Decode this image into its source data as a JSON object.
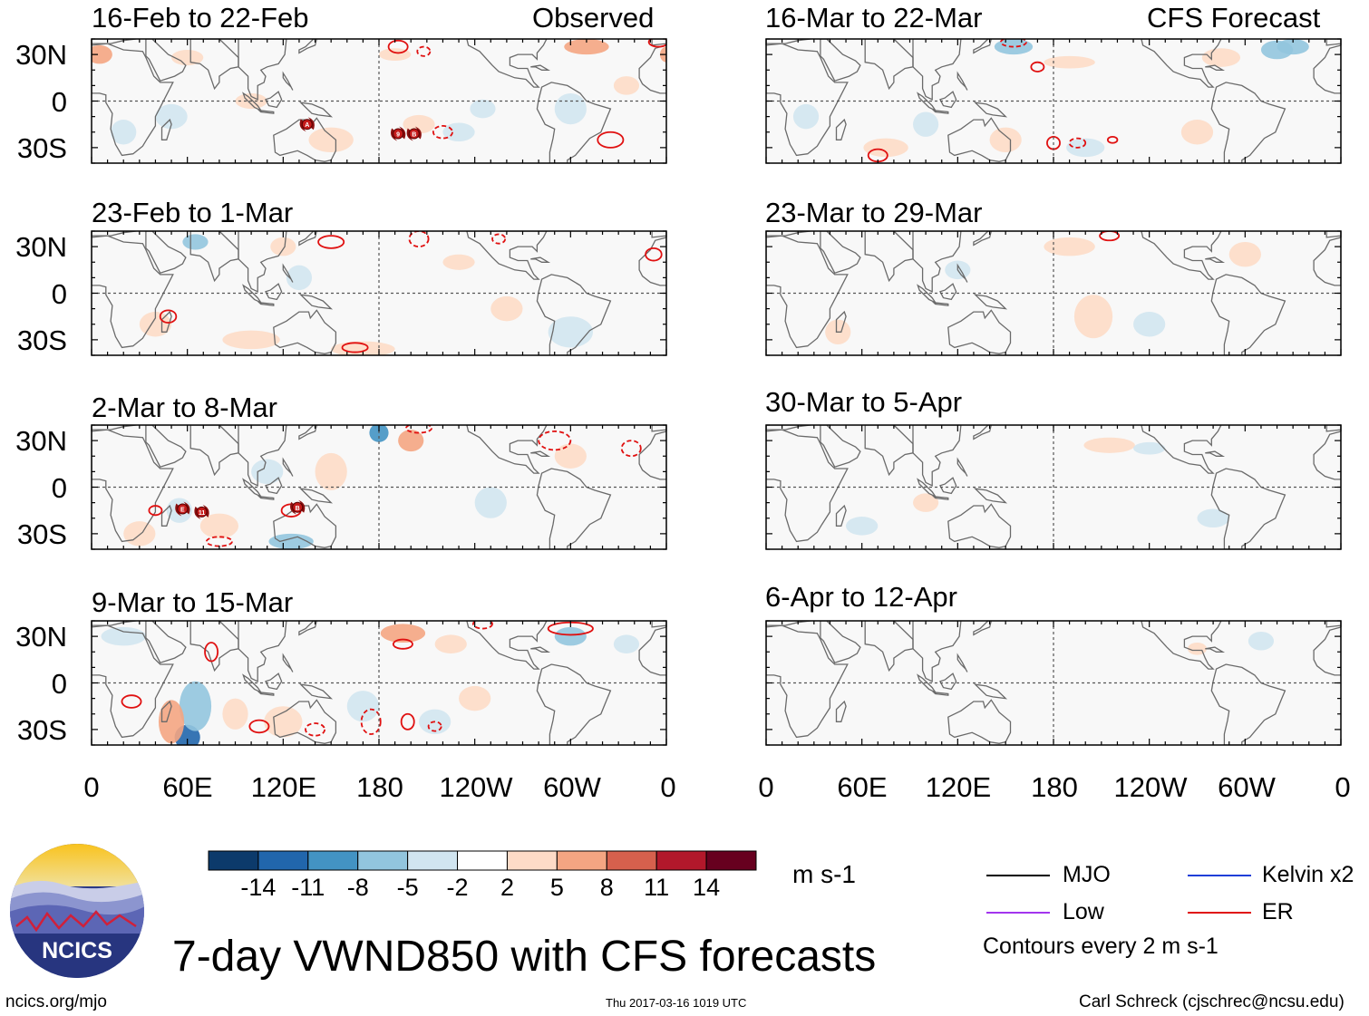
{
  "labels": {
    "observed": "Observed",
    "forecast": "CFS Forecast"
  },
  "panels": [
    {
      "id": "obs1",
      "period": "16-Feb to 22-Feb",
      "column": "left",
      "row": 0,
      "header": "Observed"
    },
    {
      "id": "obs2",
      "period": "23-Feb to 1-Mar",
      "column": "left",
      "row": 1
    },
    {
      "id": "obs3",
      "period": "2-Mar to 8-Mar",
      "column": "left",
      "row": 2
    },
    {
      "id": "obs4",
      "period": "9-Mar to 15-Mar",
      "column": "left",
      "row": 3
    },
    {
      "id": "fc1",
      "period": "16-Mar to 22-Mar",
      "column": "right",
      "row": 0,
      "header": "CFS Forecast"
    },
    {
      "id": "fc2",
      "period": "23-Mar to 29-Mar",
      "column": "right",
      "row": 1
    },
    {
      "id": "fc3",
      "period": "30-Mar to 5-Apr",
      "column": "right",
      "row": 2
    },
    {
      "id": "fc4",
      "period": "6-Apr to 12-Apr",
      "column": "right",
      "row": 3
    }
  ],
  "axes": {
    "y_ticks": [
      "30N",
      "0",
      "30S"
    ],
    "x_ticks": [
      "0",
      "60E",
      "120E",
      "180",
      "120W",
      "60W",
      "0"
    ],
    "lat_range": [
      -40,
      40
    ],
    "lon_range": [
      0,
      360
    ]
  },
  "colorbar": {
    "labels": [
      "-14",
      "-11",
      "-8",
      "-5",
      "-2",
      "2",
      "5",
      "8",
      "11",
      "14"
    ],
    "colors": [
      "#0c3a6b",
      "#2166ac",
      "#4393c3",
      "#92c5de",
      "#d1e5f0",
      "#ffffff",
      "#fddbc7",
      "#f4a582",
      "#d6604d",
      "#b2182b",
      "#67001f"
    ],
    "units": "m s-1"
  },
  "legend": {
    "items": [
      {
        "label": "MJO",
        "color": "#000000"
      },
      {
        "label": "Kelvin x2",
        "color": "#1f3fd8"
      },
      {
        "label": "Low",
        "color": "#a335ee"
      },
      {
        "label": "ER",
        "color": "#e01010"
      }
    ],
    "note": "Contours every 2 m s-1"
  },
  "title": "7-day VWND850 with CFS forecasts",
  "footer": {
    "left": "ncics.org/mjo",
    "center": "Thu 2017-03-16 1019 UTC",
    "right": "Carl Schreck (cjschrec@ncsu.edu)"
  },
  "logo_text": "NCICS",
  "storms": [
    {
      "panel": "obs1",
      "label": "A",
      "lon": 135,
      "lat": -15
    },
    {
      "panel": "obs1",
      "label": "9",
      "lon": 192,
      "lat": -21
    },
    {
      "panel": "obs1",
      "label": "B",
      "lon": 202,
      "lat": -21
    },
    {
      "panel": "obs3",
      "label": "E",
      "lon": 57,
      "lat": -14
    },
    {
      "panel": "obs3",
      "label": "11",
      "lon": 69,
      "lat": -16
    },
    {
      "panel": "obs3",
      "label": "B",
      "lon": 129,
      "lat": -13
    }
  ],
  "colors": {
    "land": "#6a6a6a",
    "frame": "#000000",
    "grid": "#555555"
  }
}
